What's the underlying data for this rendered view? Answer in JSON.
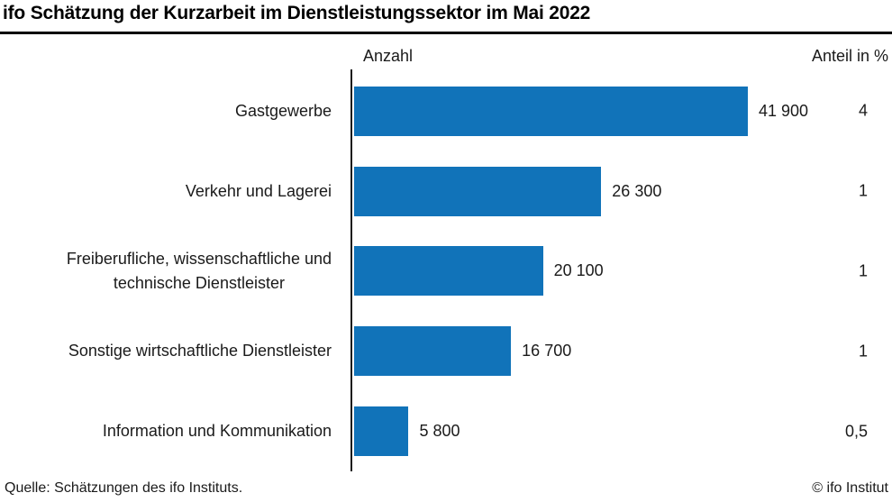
{
  "title": "ifo Schätzung der Kurzarbeit im Dienstleistungssektor im Mai 2022",
  "columns": {
    "left_header": "Anzahl",
    "right_header": "Anteil in %"
  },
  "chart_data": {
    "type": "bar",
    "orientation": "horizontal",
    "title": "ifo Schätzung der Kurzarbeit im Dienstleistungssektor im Mai 2022",
    "categories": [
      "Gastgewerbe",
      "Verkehr und Lagerei",
      "Freiberufliche, wissenschaftliche und\ntechnische Dienstleister",
      "Sonstige wirtschaftliche Dienstleister",
      "Information und Kommunikation"
    ],
    "series": [
      {
        "name": "Anzahl",
        "values": [
          41900,
          26300,
          20100,
          16700,
          5800
        ],
        "value_labels": [
          "41 900",
          "26 300",
          "20 100",
          "16 700",
          "5 800"
        ]
      },
      {
        "name": "Anteil in %",
        "values": [
          4,
          1,
          1,
          1,
          0.5
        ],
        "value_labels": [
          "4",
          "1",
          "1",
          "1",
          "0,5"
        ]
      }
    ],
    "xlim": [
      0,
      41900
    ],
    "grid": false,
    "legend": "none",
    "bar_color": "#1173b9",
    "axis_color": "#1a1a1a"
  },
  "footer": {
    "source": "Quelle: Schätzungen des ifo Instituts.",
    "copyright": "© ifo Institut"
  }
}
